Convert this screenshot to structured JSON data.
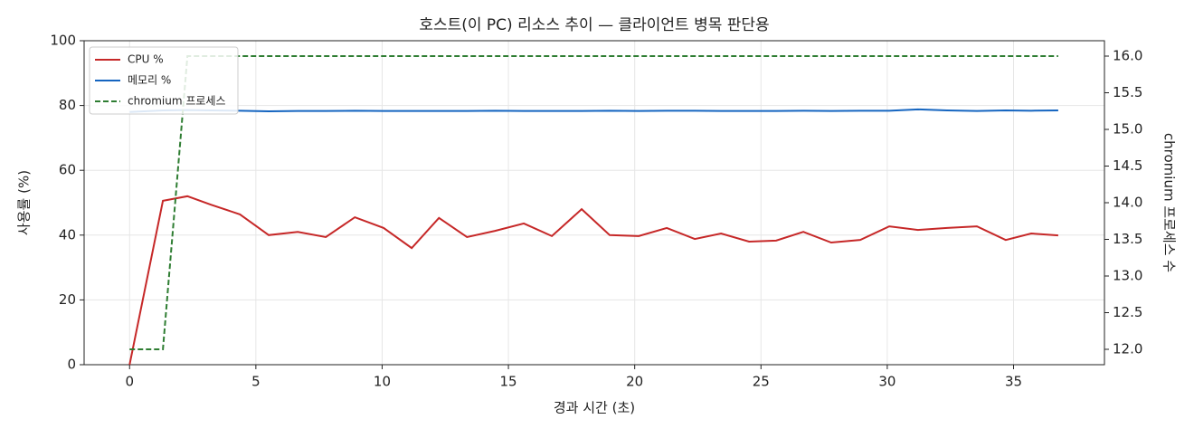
{
  "chart_data": {
    "type": "line",
    "title": "호스트(이 PC) 리소스 추이 — 클라이언트 병목 판단용",
    "xlabel": "경과 시간 (초)",
    "ylabel": "사용률 (%)",
    "y2label": "chromium 프로세스 수",
    "x": [
      0,
      1.32,
      2.29,
      3.22,
      4.37,
      5.51,
      6.66,
      7.77,
      8.92,
      10.06,
      11.17,
      12.25,
      13.36,
      14.47,
      15.61,
      16.72,
      17.9,
      19.01,
      20.16,
      21.27,
      22.38,
      23.42,
      24.53,
      25.6,
      26.68,
      27.78,
      28.93,
      30.08,
      31.22,
      32.37,
      33.55,
      34.69,
      35.7,
      36.77
    ],
    "series": [
      {
        "name": "CPU %",
        "color": "#c62828",
        "linestyle": "solid",
        "values": [
          0,
          50.6,
          52,
          49.4,
          46.4,
          40,
          41,
          39.4,
          45.5,
          42.2,
          36,
          45.3,
          39.4,
          41.3,
          43.6,
          39.7,
          48,
          40,
          39.7,
          42.2,
          38.8,
          40.5,
          38,
          38.3,
          41,
          37.7,
          38.5,
          42.7,
          41.6,
          42.2,
          42.7,
          38.5,
          40.5,
          39.9
        ]
      },
      {
        "name": "메모리 %",
        "color": "#1565c0",
        "linestyle": "solid",
        "values": [
          78,
          78.5,
          78.6,
          78.5,
          78.4,
          78.2,
          78.3,
          78.3,
          78.4,
          78.3,
          78.3,
          78.3,
          78.3,
          78.4,
          78.3,
          78.3,
          78.3,
          78.4,
          78.3,
          78.4,
          78.4,
          78.3,
          78.3,
          78.3,
          78.4,
          78.3,
          78.4,
          78.4,
          78.8,
          78.5,
          78.3,
          78.5,
          78.4,
          78.5
        ]
      },
      {
        "name": "chromium 프로세스",
        "color": "#2e7d32",
        "linestyle": "dashed",
        "axis": "y2",
        "values": [
          12,
          12,
          16,
          16,
          16,
          16,
          16,
          16,
          16,
          16,
          16,
          16,
          16,
          16,
          16,
          16,
          16,
          16,
          16,
          16,
          16,
          16,
          16,
          16,
          16,
          16,
          16,
          16,
          16,
          16,
          16,
          16,
          16,
          16
        ]
      }
    ],
    "xlim": [
      -1.8,
      38.6
    ],
    "xticks": [
      0,
      5,
      10,
      15,
      20,
      25,
      30,
      35
    ],
    "ylim": [
      0,
      100
    ],
    "yticks": [
      0,
      20,
      40,
      60,
      80,
      100
    ],
    "y2lim": [
      11.79,
      16.21
    ],
    "y2ticks": [
      {
        "value": 12,
        "label": "12.0"
      },
      12.5,
      {
        "value": 13,
        "label": "13.0"
      },
      13.5,
      {
        "value": 14,
        "label": "14.0"
      },
      14.5,
      {
        "value": 15,
        "label": "15.0"
      },
      15.5,
      {
        "value": 16,
        "label": "16.0"
      }
    ],
    "grid": true,
    "legend": "upper-left"
  }
}
